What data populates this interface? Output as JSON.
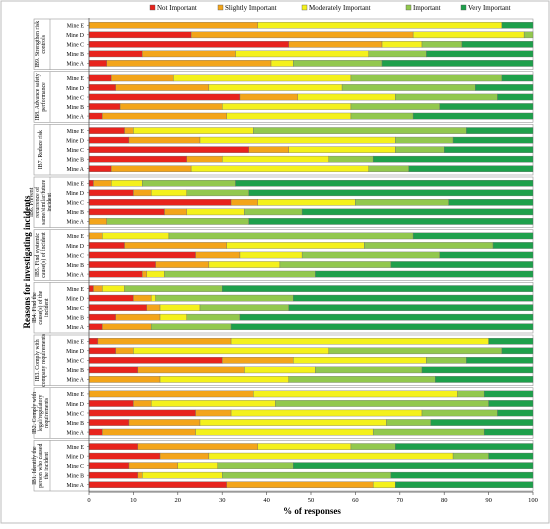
{
  "chart_data": {
    "type": "bar",
    "orientation": "horizontal",
    "stacked": true,
    "title": "",
    "xlabel": "% of responses",
    "ylabel": "Reasons for investigating incidents",
    "xlim": [
      0,
      100
    ],
    "x_ticks": [
      "0",
      "10",
      "20",
      "30",
      "40",
      "50",
      "60",
      "70",
      "80",
      "90",
      "100"
    ],
    "grid": false,
    "legend_position": "top",
    "series": [
      {
        "name": "Not Important",
        "color": "#e8231d"
      },
      {
        "name": "Slightly Important",
        "color": "#f3a51a"
      },
      {
        "name": "Moderately Important",
        "color": "#f4f11c"
      },
      {
        "name": "Important",
        "color": "#92c84e"
      },
      {
        "name": "Very Important",
        "color": "#1ea04b"
      }
    ],
    "groups": [
      {
        "label": "IB9. Strengthen risk controls",
        "rows": [
          {
            "name": "Mine E",
            "values": [
              0,
              38,
              55,
              0,
              7
            ]
          },
          {
            "name": "Mine D",
            "values": [
              23,
              50,
              25,
              2,
              0
            ]
          },
          {
            "name": "Mine C",
            "values": [
              45,
              21,
              9,
              9,
              16
            ]
          },
          {
            "name": "Mine B",
            "values": [
              12,
              21,
              30,
              13,
              24
            ]
          },
          {
            "name": "Mine A",
            "values": [
              4,
              37,
              5,
              20,
              34
            ]
          }
        ]
      },
      {
        "label": "IB8. Advance safety performance",
        "rows": [
          {
            "name": "Mine E",
            "values": [
              5,
              14,
              40,
              34,
              7
            ]
          },
          {
            "name": "Mine D",
            "values": [
              6,
              21,
              30,
              30,
              13
            ]
          },
          {
            "name": "Mine C",
            "values": [
              34,
              13,
              22,
              23,
              8
            ]
          },
          {
            "name": "Mine B",
            "values": [
              7,
              23,
              29,
              20,
              21
            ]
          },
          {
            "name": "Mine A",
            "values": [
              3,
              28,
              28,
              14,
              27
            ]
          }
        ]
      },
      {
        "label": "IB7. Reduce risk",
        "rows": [
          {
            "name": "Mine E",
            "values": [
              8,
              2,
              27,
              48,
              15
            ]
          },
          {
            "name": "Mine D",
            "values": [
              9,
              16,
              44,
              13,
              18
            ]
          },
          {
            "name": "Mine C",
            "values": [
              36,
              9,
              24,
              11,
              20
            ]
          },
          {
            "name": "Mine B",
            "values": [
              22,
              8,
              24,
              10,
              36
            ]
          },
          {
            "name": "Mine A",
            "values": [
              5,
              18,
              40,
              9,
              28
            ]
          }
        ]
      },
      {
        "label": "IB6. Prevent recurrence of same/similar/future incident",
        "rows": [
          {
            "name": "Mine E",
            "values": [
              1,
              4,
              7,
              21,
              67
            ]
          },
          {
            "name": "Mine D",
            "values": [
              10,
              4,
              8,
              14,
              64
            ]
          },
          {
            "name": "Mine C",
            "values": [
              32,
              6,
              22,
              21,
              19
            ]
          },
          {
            "name": "Mine B",
            "values": [
              17,
              5,
              13,
              13,
              52
            ]
          },
          {
            "name": "Mine A",
            "values": [
              0,
              4,
              0,
              32,
              64
            ]
          }
        ]
      },
      {
        "label": "IB5. Find systemic cause(s) of incident",
        "rows": [
          {
            "name": "Mine E",
            "values": [
              0,
              3,
              15,
              55,
              27
            ]
          },
          {
            "name": "Mine D",
            "values": [
              8,
              23,
              31,
              29,
              9
            ]
          },
          {
            "name": "Mine C",
            "values": [
              24,
              10,
              14,
              31,
              21
            ]
          },
          {
            "name": "Mine B",
            "values": [
              15,
              12,
              16,
              25,
              32
            ]
          },
          {
            "name": "Mine A",
            "values": [
              12,
              1,
              4,
              34,
              49
            ]
          }
        ]
      },
      {
        "label": "IB4. Find the cause(s) of the incident",
        "rows": [
          {
            "name": "Mine E",
            "values": [
              1,
              2,
              5,
              22,
              70
            ]
          },
          {
            "name": "Mine D",
            "values": [
              10,
              4,
              1,
              31,
              54
            ]
          },
          {
            "name": "Mine C",
            "values": [
              13,
              3,
              9,
              20,
              55
            ]
          },
          {
            "name": "Mine B",
            "values": [
              6,
              10,
              6,
              12,
              66
            ]
          },
          {
            "name": "Mine A",
            "values": [
              3,
              11,
              0,
              18,
              68
            ]
          }
        ]
      },
      {
        "label": "IB3. Comply with company requirements",
        "rows": [
          {
            "name": "Mine E",
            "values": [
              2,
              30,
              58,
              0,
              10
            ]
          },
          {
            "name": "Mine D",
            "values": [
              6,
              4,
              44,
              39,
              7
            ]
          },
          {
            "name": "Mine C",
            "values": [
              30,
              16,
              30,
              9,
              15
            ]
          },
          {
            "name": "Mine B",
            "values": [
              11,
              24,
              16,
              24,
              25
            ]
          },
          {
            "name": "Mine A",
            "values": [
              0,
              16,
              29,
              33,
              22
            ]
          }
        ]
      },
      {
        "label": "IB2. Comply with legal/regulatory requirements",
        "rows": [
          {
            "name": "Mine E",
            "values": [
              0,
              37,
              46,
              6,
              11
            ]
          },
          {
            "name": "Mine D",
            "values": [
              10,
              4,
              28,
              48,
              10
            ]
          },
          {
            "name": "Mine C",
            "values": [
              24,
              8,
              43,
              17,
              8
            ]
          },
          {
            "name": "Mine B",
            "values": [
              9,
              16,
              42,
              10,
              23
            ]
          },
          {
            "name": "Mine A",
            "values": [
              3,
              21,
              40,
              25,
              11
            ]
          }
        ]
      },
      {
        "label": "IB1. Identify the person who caused the incident",
        "rows": [
          {
            "name": "Mine E",
            "values": [
              11,
              27,
              21,
              10,
              31
            ]
          },
          {
            "name": "Mine D",
            "values": [
              16,
              11,
              55,
              8,
              10
            ]
          },
          {
            "name": "Mine C",
            "values": [
              9,
              11,
              9,
              17,
              54
            ]
          },
          {
            "name": "Mine B",
            "values": [
              11,
              1,
              18,
              38,
              32
            ]
          },
          {
            "name": "Mine A",
            "values": [
              31,
              33,
              5,
              0,
              31
            ]
          }
        ]
      }
    ]
  }
}
